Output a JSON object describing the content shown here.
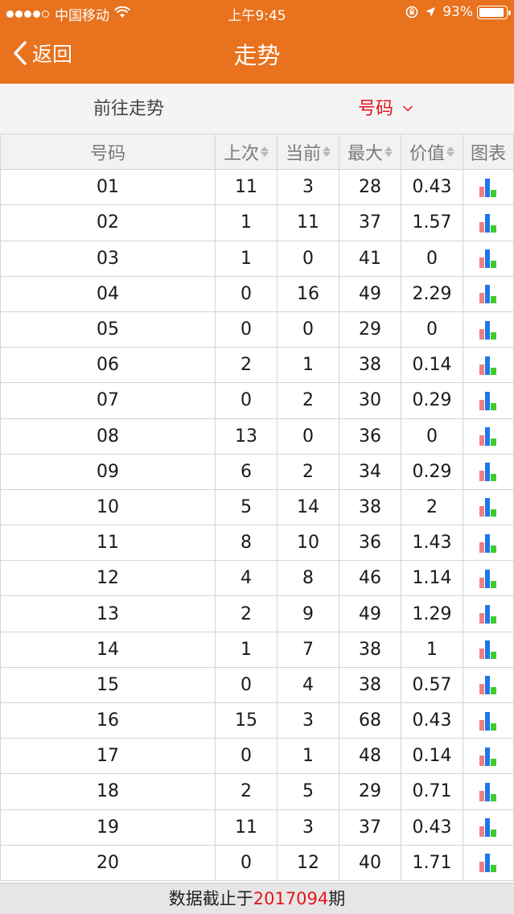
{
  "status_bar": {
    "carrier": "中国移动",
    "time": "上午9:45",
    "battery": "93%",
    "battery_level": 0.93
  },
  "nav": {
    "back_label": "返回",
    "title": "走势"
  },
  "filter": {
    "goto_label": "前往走势",
    "select_label": "号码"
  },
  "table": {
    "headers": [
      "号码",
      "上次",
      "当前",
      "最大",
      "价值",
      "图表"
    ],
    "rows": [
      [
        "01",
        "11",
        "3",
        "28",
        "0.43"
      ],
      [
        "02",
        "1",
        "11",
        "37",
        "1.57"
      ],
      [
        "03",
        "1",
        "0",
        "41",
        "0"
      ],
      [
        "04",
        "0",
        "16",
        "49",
        "2.29"
      ],
      [
        "05",
        "0",
        "0",
        "29",
        "0"
      ],
      [
        "06",
        "2",
        "1",
        "38",
        "0.14"
      ],
      [
        "07",
        "0",
        "2",
        "30",
        "0.29"
      ],
      [
        "08",
        "13",
        "0",
        "36",
        "0"
      ],
      [
        "09",
        "6",
        "2",
        "34",
        "0.29"
      ],
      [
        "10",
        "5",
        "14",
        "38",
        "2"
      ],
      [
        "11",
        "8",
        "10",
        "36",
        "1.43"
      ],
      [
        "12",
        "4",
        "8",
        "46",
        "1.14"
      ],
      [
        "13",
        "2",
        "9",
        "49",
        "1.29"
      ],
      [
        "14",
        "1",
        "7",
        "38",
        "1"
      ],
      [
        "15",
        "0",
        "4",
        "38",
        "0.57"
      ],
      [
        "16",
        "15",
        "3",
        "68",
        "0.43"
      ],
      [
        "17",
        "0",
        "1",
        "48",
        "0.14"
      ],
      [
        "18",
        "2",
        "5",
        "29",
        "0.71"
      ],
      [
        "19",
        "11",
        "3",
        "37",
        "0.43"
      ],
      [
        "20",
        "0",
        "12",
        "40",
        "1.71"
      ]
    ]
  },
  "footer": {
    "prefix": "数据截止于",
    "issue": "2017094",
    "suffix": "期"
  },
  "colors": {
    "accent": "#e8721d",
    "highlight": "#e8141b",
    "chart_red": "#f08080",
    "chart_blue": "#1f77e8",
    "chart_green": "#3ecb2e"
  },
  "icons": [
    "chevron-left-icon",
    "chevron-down-icon",
    "bar-chart-icon",
    "wifi-icon",
    "location-arrow-icon",
    "orientation-lock-icon"
  ]
}
